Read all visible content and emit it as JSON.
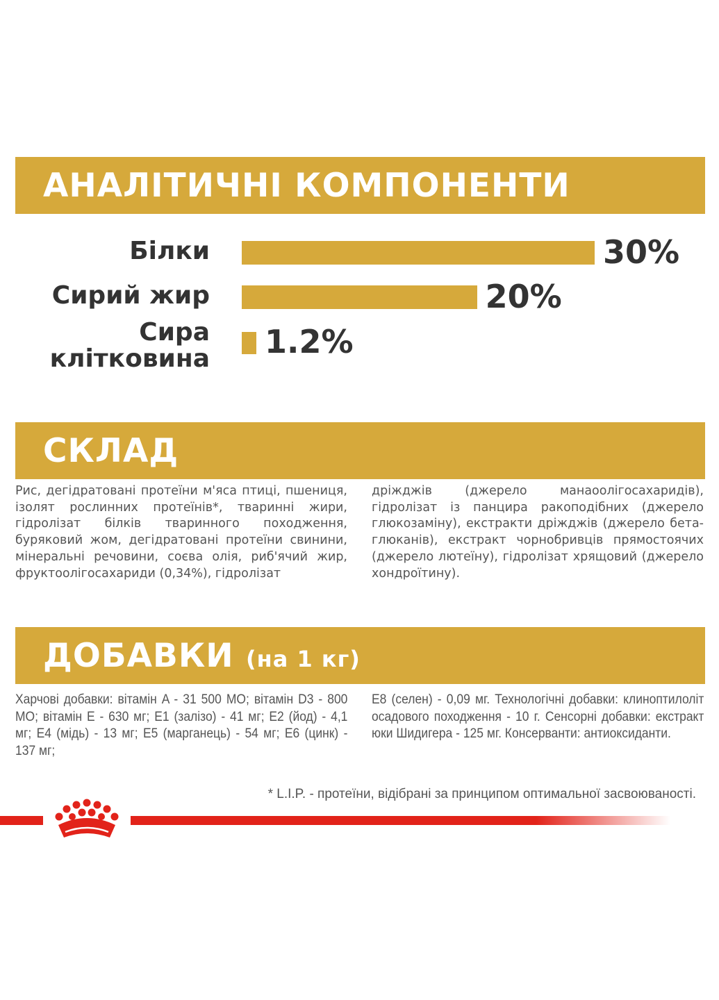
{
  "analytics": {
    "title": "АНАЛІТИЧНІ КОМПОНЕНТИ",
    "items": [
      {
        "label": "Білки",
        "value": 30,
        "display": "30%"
      },
      {
        "label": "Сирий жир",
        "value": 20,
        "display": "20%"
      },
      {
        "label_line1": "Сира",
        "label_line2": "клітковина",
        "value": 1.2,
        "display": "1.2%"
      }
    ]
  },
  "composition": {
    "title": "СКЛАД",
    "col1": "Рис, дегідратовані протеїни м'яса птиці, пшениця, ізолят рослинних протеїнів*, тваринні жири, гідролізат білків тваринного походження, буряковий жом, дегідратовані протеїни свинини, мінеральні речовини, соєва олія, риб'ячий жир, фруктоолігосахариди (0,34%), гідролізат",
    "col2": "дріжджів (джерело манаоолігосахаридів), гідролізат із панцира ракоподібних (джерело глюкозаміну), екстракти дріжджів (джерело бета-глюканів), екстракт чорнобривців прямостоячих (джерело лютеїну), гідролізат хрящовий (джерело хондроїтину)."
  },
  "additives": {
    "title": "ДОБАВКИ",
    "subtitle": "(на 1 кг)",
    "col1": "Харчові добавки: вітамін A - 31 500 МО; вітамін D3 - 800 МО; вітамін E - 630 мг; E1 (залізо) - 41 мг; E2 (йод) - 4,1 мг; E4 (мідь) - 13 мг; E5 (марганець) - 54 мг; E6 (цинк) - 137 мг;",
    "col2": "E8 (селен) - 0,09 мг. Технологічні добавки: клиноптилоліт осадового походження - 10 г. Сенсорні добавки: екстракт юки Шидигера - 125 мг. Консерванти: антиоксиданти."
  },
  "footnote": "* L.I.P. - протеїни, відібрані за принципом оптимальної засвоюваності.",
  "colors": {
    "accent": "#D6A93B",
    "brand_red": "#E2231A",
    "text": "#333333"
  }
}
